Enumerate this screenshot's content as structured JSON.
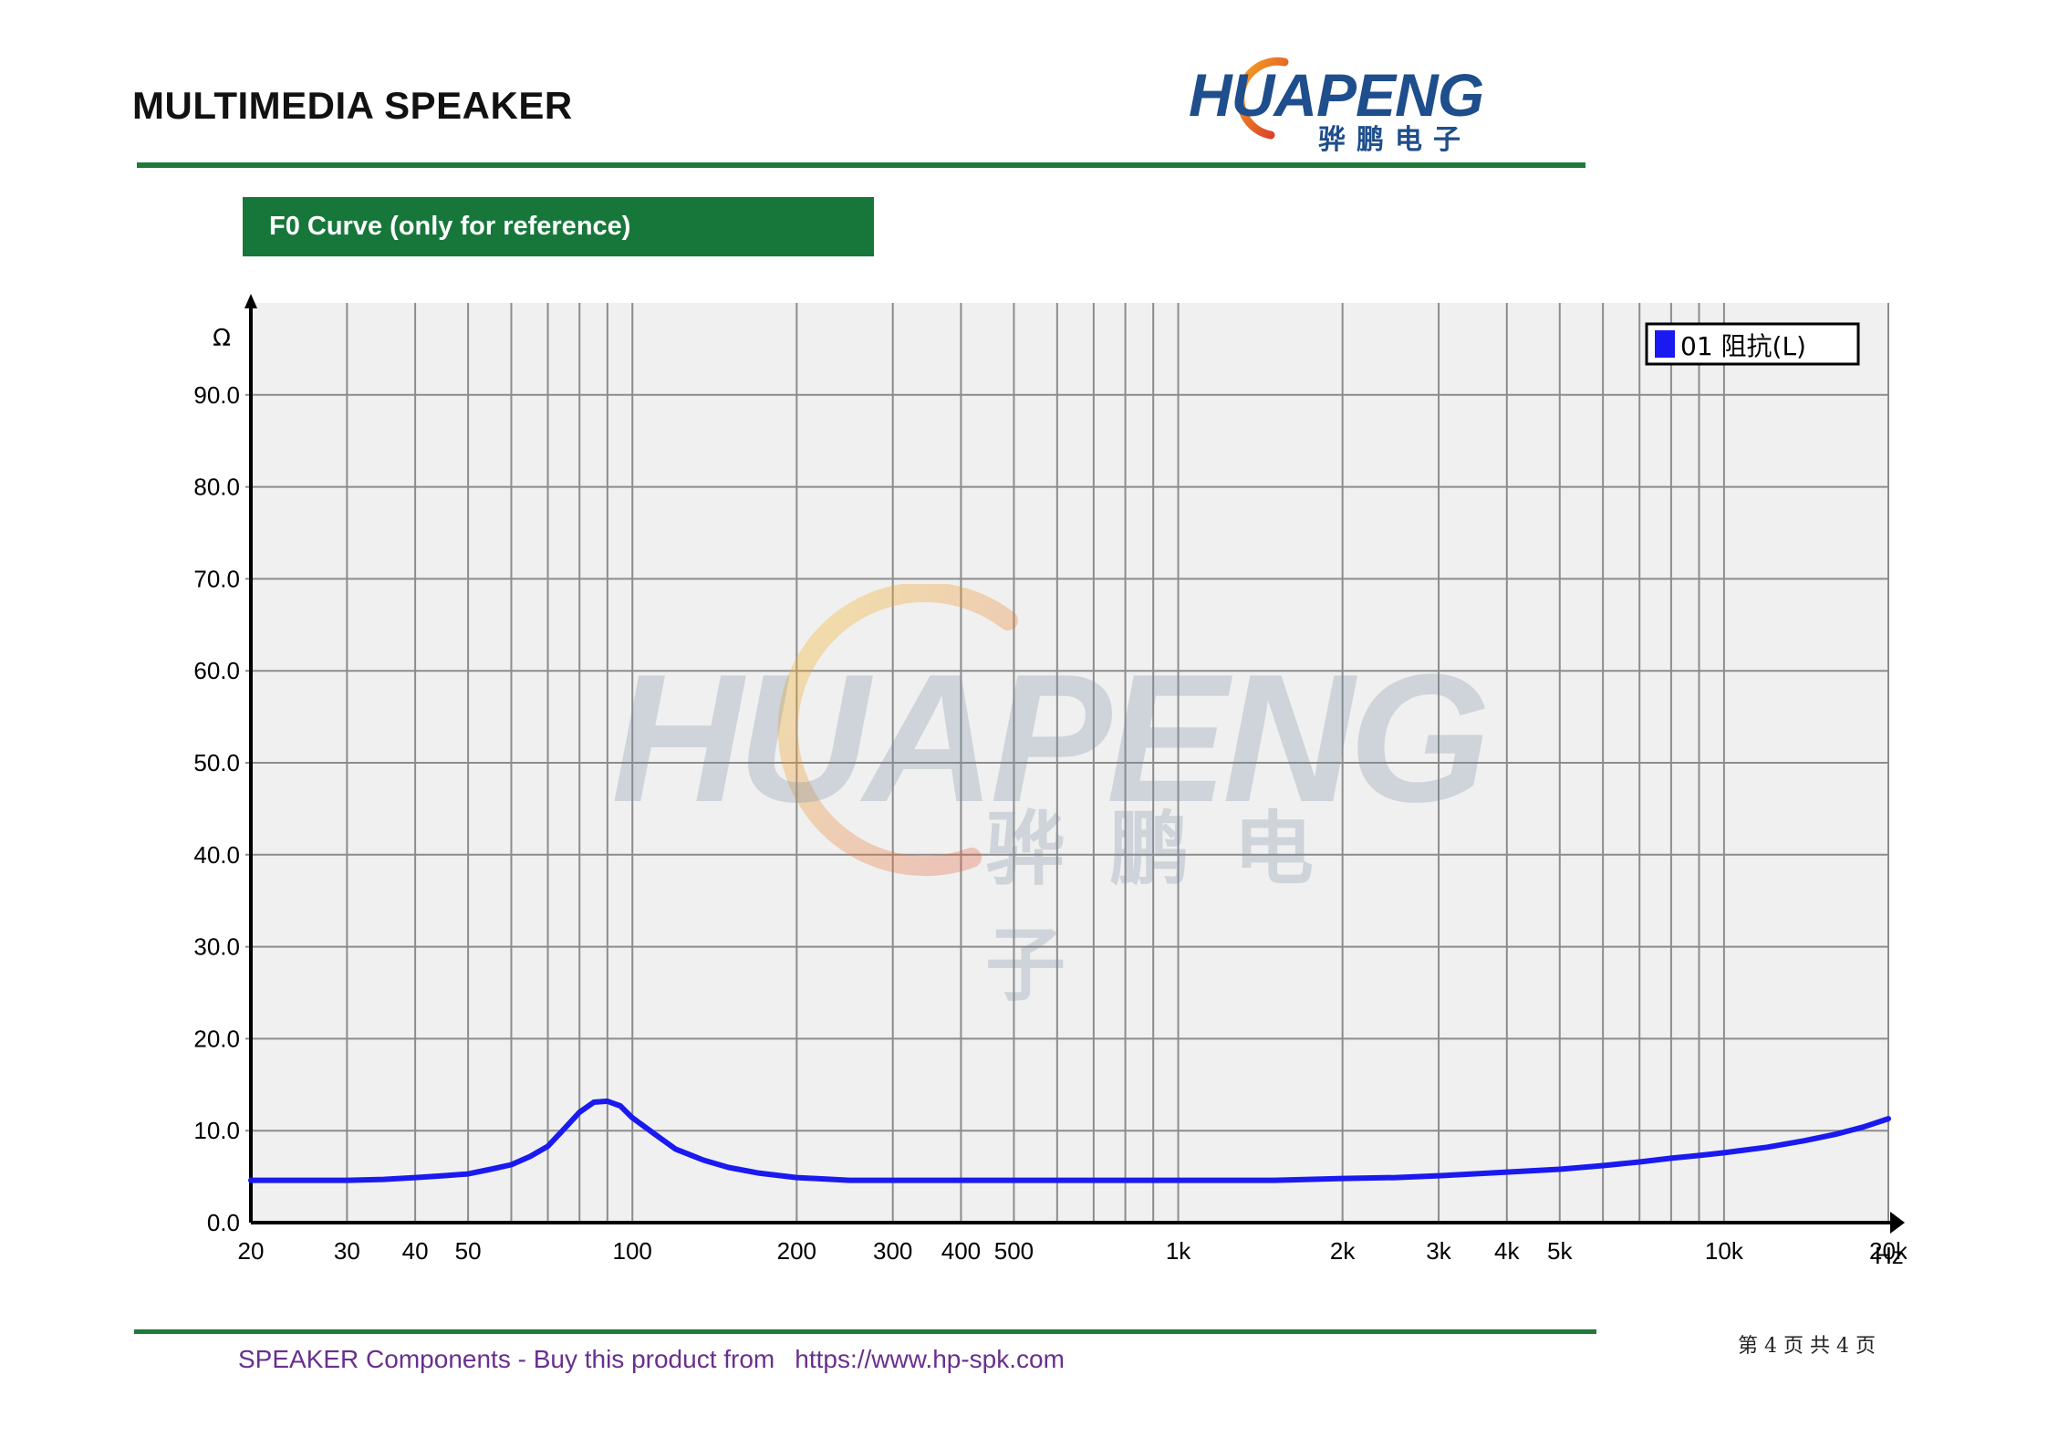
{
  "header": {
    "title": "MULTIMEDIA SPEAKER",
    "logo_text": "HUAPENG",
    "logo_cn": "骅鹏电子"
  },
  "section": {
    "label": "F0 Curve (only for reference)"
  },
  "watermark": {
    "text": "HUAPENG",
    "cn": "骅鹏电子"
  },
  "footer": {
    "text": "SPEAKER Components - Buy this product from",
    "url": "https://www.hp-spk.com",
    "page": "第 4 页 共 4 页"
  },
  "colors": {
    "brand_green": "#1f7a3a",
    "series_blue": "#1a1af0",
    "plot_bg": "#f0f0f0",
    "grid": "#8c8c8c",
    "footer_purple": "#6a2f8e"
  },
  "chart_data": {
    "type": "line",
    "title": "",
    "xlabel": "Hz",
    "ylabel": "Ω",
    "x_scale": "log",
    "xlim": [
      20,
      20000
    ],
    "ylim": [
      0,
      100
    ],
    "grid": true,
    "legend_position": "top-right",
    "x_tick_labels": [
      "20",
      "30",
      "40",
      "50",
      "100",
      "200",
      "300",
      "400",
      "500",
      "1k",
      "2k",
      "3k",
      "4k",
      "5k",
      "10k",
      "20k"
    ],
    "x_tick_values": [
      20,
      30,
      40,
      50,
      100,
      200,
      300,
      400,
      500,
      1000,
      2000,
      3000,
      4000,
      5000,
      10000,
      20000
    ],
    "x_gridlines": [
      30,
      40,
      50,
      60,
      70,
      80,
      90,
      100,
      200,
      300,
      400,
      500,
      600,
      700,
      800,
      900,
      1000,
      2000,
      3000,
      4000,
      5000,
      6000,
      7000,
      8000,
      9000,
      10000,
      20000
    ],
    "y_ticks": [
      "0.0",
      "10.0",
      "20.0",
      "30.0",
      "40.0",
      "50.0",
      "60.0",
      "70.0",
      "80.0",
      "90.0"
    ],
    "y_tick_values": [
      0,
      10,
      20,
      30,
      40,
      50,
      60,
      70,
      80,
      90
    ],
    "series": [
      {
        "name": "01 阻抗(L)",
        "color": "#1a1af0",
        "points": [
          [
            20,
            4.6
          ],
          [
            25,
            4.6
          ],
          [
            30,
            4.6
          ],
          [
            35,
            4.7
          ],
          [
            40,
            4.9
          ],
          [
            45,
            5.1
          ],
          [
            50,
            5.3
          ],
          [
            55,
            5.8
          ],
          [
            60,
            6.3
          ],
          [
            65,
            7.2
          ],
          [
            70,
            8.3
          ],
          [
            75,
            10.2
          ],
          [
            80,
            12.0
          ],
          [
            85,
            13.1
          ],
          [
            90,
            13.2
          ],
          [
            95,
            12.7
          ],
          [
            100,
            11.4
          ],
          [
            110,
            9.6
          ],
          [
            120,
            8.0
          ],
          [
            135,
            6.8
          ],
          [
            150,
            6.0
          ],
          [
            170,
            5.4
          ],
          [
            200,
            4.9
          ],
          [
            250,
            4.6
          ],
          [
            300,
            4.6
          ],
          [
            500,
            4.6
          ],
          [
            1000,
            4.6
          ],
          [
            1500,
            4.6
          ],
          [
            2000,
            4.8
          ],
          [
            2500,
            4.9
          ],
          [
            3000,
            5.1
          ],
          [
            4000,
            5.5
          ],
          [
            5000,
            5.8
          ],
          [
            6000,
            6.2
          ],
          [
            7000,
            6.6
          ],
          [
            8000,
            7.0
          ],
          [
            9000,
            7.3
          ],
          [
            10000,
            7.6
          ],
          [
            12000,
            8.2
          ],
          [
            14000,
            8.9
          ],
          [
            16000,
            9.6
          ],
          [
            18000,
            10.4
          ],
          [
            20000,
            11.3
          ]
        ]
      }
    ]
  }
}
